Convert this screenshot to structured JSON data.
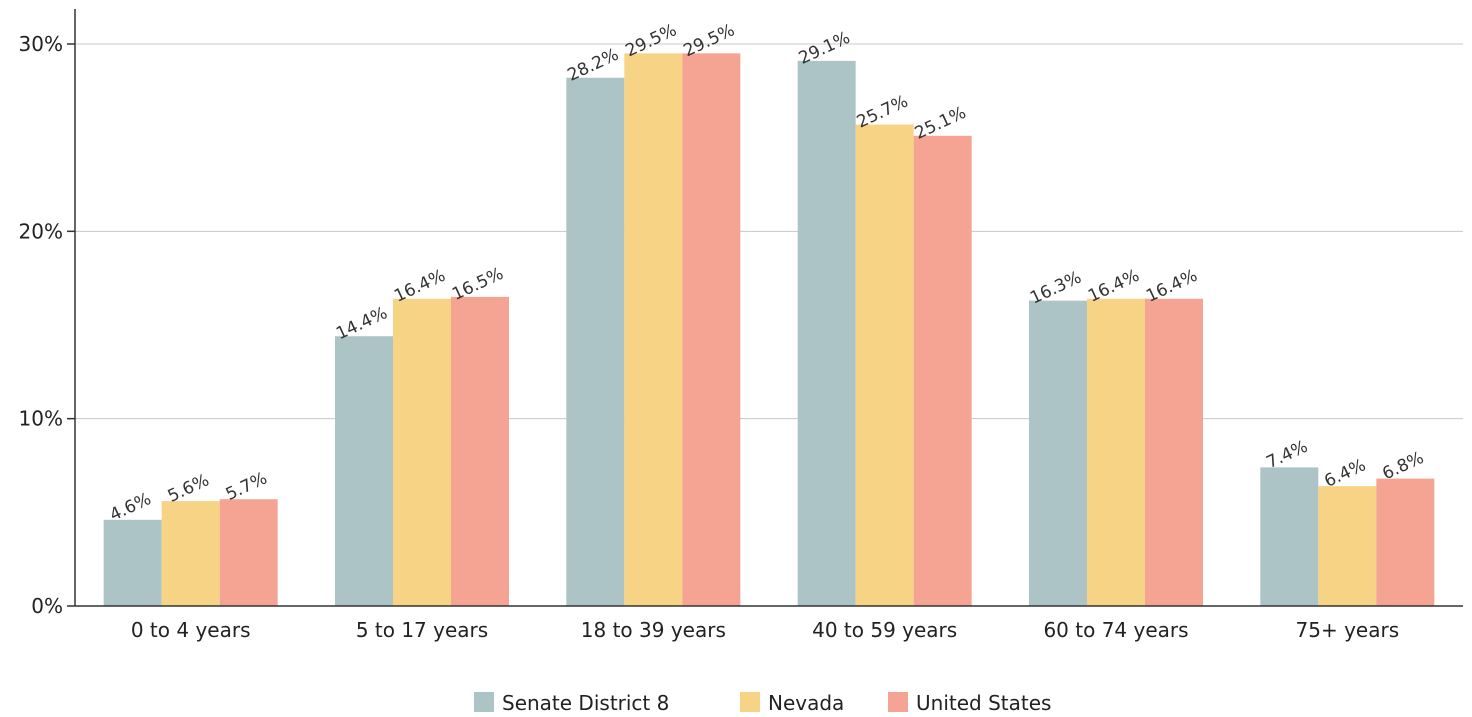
{
  "chart_data": {
    "type": "bar",
    "categories": [
      "0 to 4 years",
      "5 to 17 years",
      "18 to 39 years",
      "40 to 59 years",
      "60 to 74 years",
      "75+ years"
    ],
    "series": [
      {
        "name": "Senate District 8",
        "values": [
          4.6,
          14.4,
          28.2,
          29.1,
          16.3,
          7.4
        ],
        "labels": [
          "4.6%",
          "14.4%",
          "28.2%",
          "29.1%",
          "16.3%",
          "7.4%"
        ],
        "color": "#adc4c6"
      },
      {
        "name": "Nevada",
        "values": [
          5.6,
          16.4,
          29.5,
          25.7,
          16.4,
          6.4
        ],
        "labels": [
          "5.6%",
          "16.4%",
          "29.5%",
          "25.7%",
          "16.4%",
          "6.4%"
        ],
        "color": "#f7d386"
      },
      {
        "name": "United States",
        "values": [
          5.7,
          16.5,
          29.5,
          25.1,
          16.4,
          6.8
        ],
        "labels": [
          "5.7%",
          "16.5%",
          "29.5%",
          "25.1%",
          "16.4%",
          "6.8%"
        ],
        "color": "#f5a393"
      }
    ],
    "yticks": [
      0,
      10,
      20,
      30
    ],
    "ytick_labels": [
      "0%",
      "10%",
      "20%",
      "30%"
    ],
    "ylim": [
      0,
      30
    ],
    "grid": true,
    "legend_position": "bottom-center"
  }
}
